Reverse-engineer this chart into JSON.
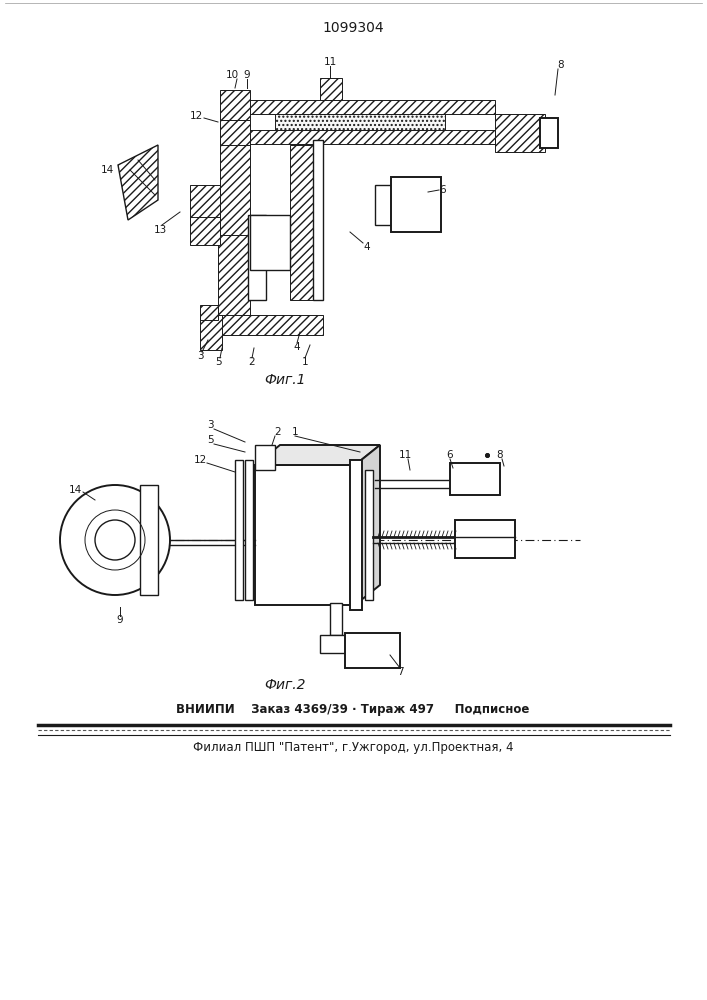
{
  "patent_number": "1099304",
  "fig1_label": "Фиг.1",
  "fig2_label": "Фиг.2",
  "footer_line1": "ВНИИПИ    Заказ 4369/39 · Тираж 497     Подписное",
  "footer_line2": "Филиал ПШП \"Патент\", г.Ужгород, ул.Проектная, 4",
  "bg_color": "#ffffff",
  "lc": "#1a1a1a",
  "fig_width": 7.07,
  "fig_height": 10.0,
  "dpi": 100
}
